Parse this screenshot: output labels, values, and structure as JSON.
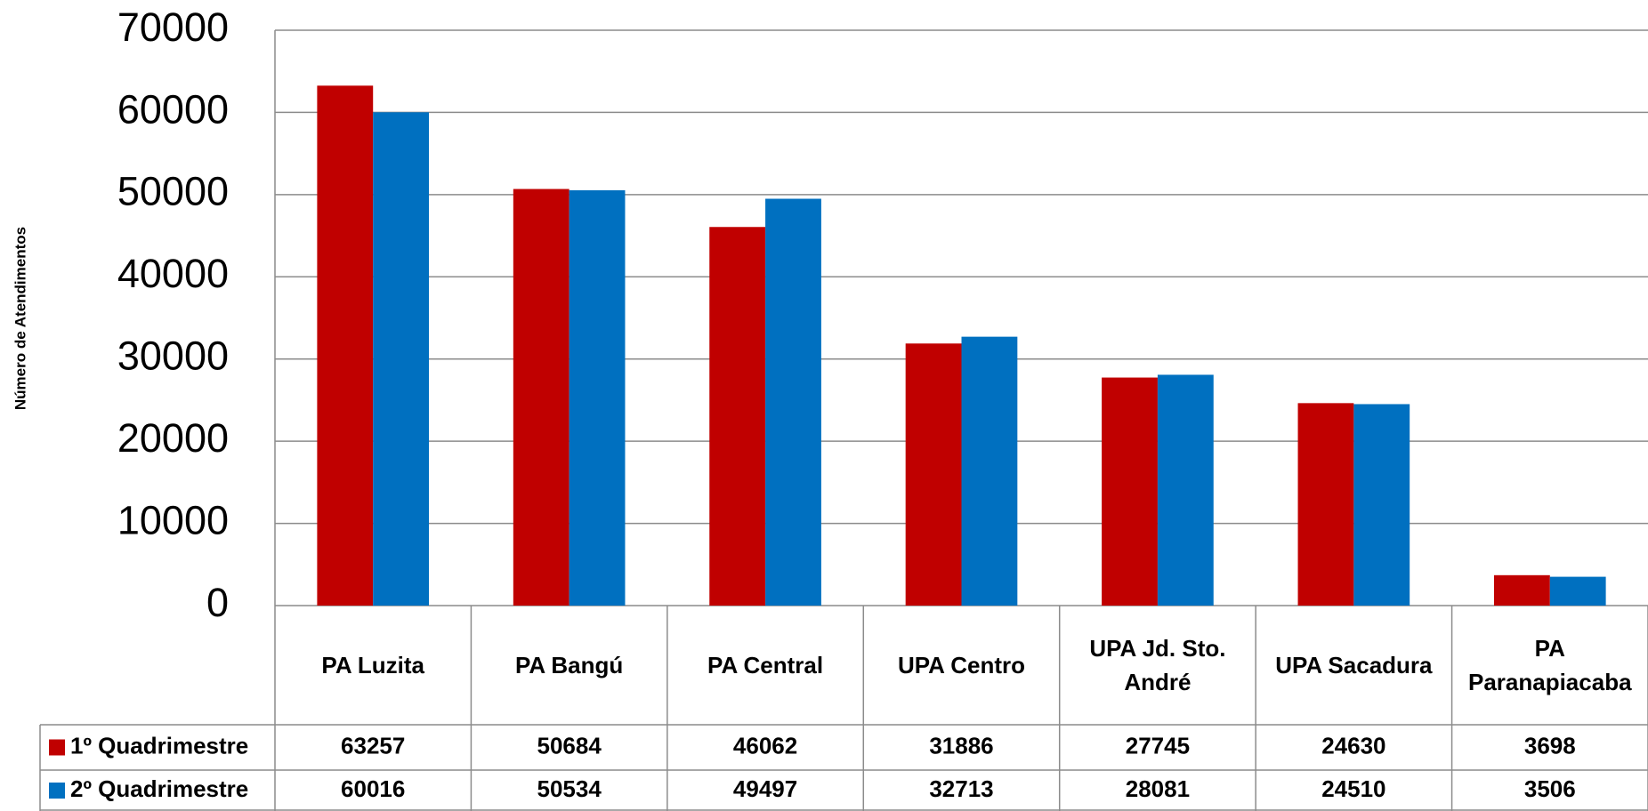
{
  "chart_data": {
    "type": "bar",
    "y_label": "Número de Atendimentos",
    "categories": [
      "PA Luzita",
      "PA Bangú",
      "PA Central",
      "UPA Centro",
      "UPA Jd. Sto. André",
      "UPA Sacadura",
      "PA Paranapiacaba"
    ],
    "series": [
      {
        "name": "1º Quadrimestre",
        "color": "#c00000",
        "values": [
          63257,
          50684,
          46062,
          31886,
          27745,
          24630,
          3698
        ]
      },
      {
        "name": "2º Quadrimestre",
        "color": "#0070c0",
        "values": [
          60016,
          50534,
          49497,
          32713,
          28081,
          24510,
          3506
        ]
      }
    ],
    "ylim": [
      0,
      70000
    ],
    "yticks": [
      0,
      10000,
      20000,
      30000,
      40000,
      50000,
      60000,
      70000
    ],
    "grid": true,
    "data_table": true
  }
}
